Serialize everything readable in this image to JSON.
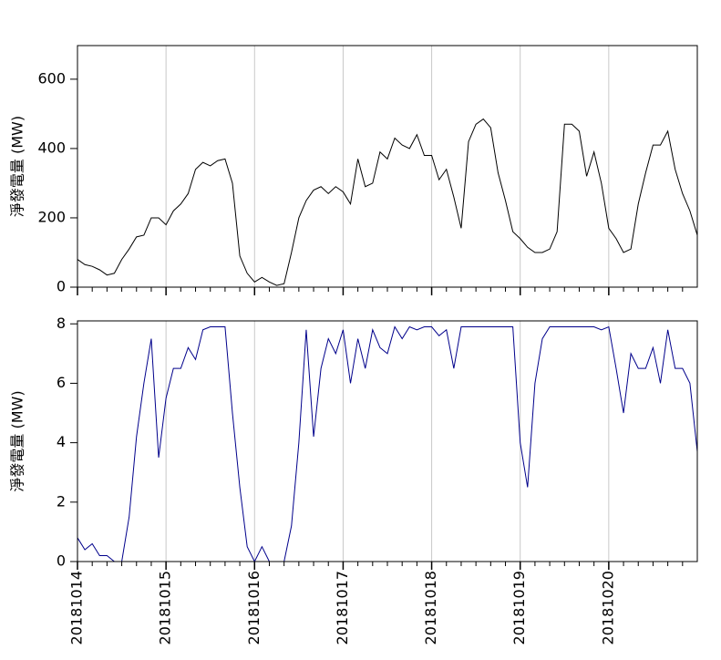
{
  "chart_data": [
    {
      "type": "line",
      "y_label": "淨發電量 (MW)",
      "x": [
        0,
        2,
        4,
        6,
        8,
        10,
        12,
        14,
        16,
        18,
        20,
        22,
        24,
        26,
        28,
        30,
        32,
        34,
        36,
        38,
        40,
        42,
        44,
        46,
        48,
        50,
        52,
        54,
        56,
        58,
        60,
        62,
        64,
        66,
        68,
        70,
        72,
        74,
        76,
        78,
        80,
        82,
        84,
        86,
        88,
        90,
        92,
        94,
        96,
        98,
        100,
        102,
        104,
        106,
        108,
        110,
        112,
        114,
        116,
        118,
        120,
        122,
        124,
        126,
        128,
        130,
        132,
        134,
        136,
        138,
        140,
        142,
        144,
        146,
        148,
        150,
        152,
        154,
        156,
        158,
        160,
        162,
        164,
        166,
        168
      ],
      "series": [
        {
          "color": "#000000",
          "values": [
            80,
            65,
            60,
            50,
            35,
            40,
            80,
            110,
            145,
            150,
            200,
            200,
            180,
            220,
            240,
            270,
            340,
            360,
            350,
            365,
            370,
            300,
            90,
            40,
            15,
            28,
            15,
            5,
            10,
            100,
            200,
            250,
            280,
            290,
            270,
            290,
            275,
            240,
            370,
            290,
            300,
            390,
            370,
            430,
            410,
            400,
            440,
            380,
            380,
            310,
            340,
            260,
            170,
            420,
            470,
            485,
            460,
            330,
            250,
            160,
            140,
            115,
            100,
            100,
            110,
            160,
            470,
            470,
            450,
            320,
            390,
            300,
            170,
            140,
            100,
            110,
            240,
            330,
            410,
            410,
            450,
            340,
            270,
            220,
            150
          ]
        }
      ],
      "xlim": [
        0,
        168
      ],
      "ylim": [
        0,
        697
      ],
      "xticks": [
        0,
        24,
        48,
        72,
        96,
        120,
        144
      ],
      "x_minor_ticks": [
        4,
        8,
        12,
        16,
        20,
        28,
        32,
        36,
        40,
        44,
        52,
        56,
        60,
        64,
        68,
        76,
        80,
        84,
        88,
        92,
        100,
        104,
        108,
        112,
        116,
        124,
        128,
        132,
        136,
        140,
        148,
        152,
        156,
        160,
        164
      ],
      "yticks": [
        0,
        200,
        400,
        600
      ],
      "grid": true
    },
    {
      "type": "line",
      "y_label": "淨發電量 (MW)",
      "x": [
        0,
        2,
        4,
        6,
        8,
        10,
        12,
        14,
        16,
        18,
        20,
        22,
        24,
        26,
        28,
        30,
        32,
        34,
        36,
        38,
        40,
        42,
        44,
        46,
        48,
        50,
        52,
        54,
        56,
        58,
        60,
        62,
        64,
        66,
        68,
        70,
        72,
        74,
        76,
        78,
        80,
        82,
        84,
        86,
        88,
        90,
        92,
        94,
        96,
        98,
        100,
        102,
        104,
        106,
        108,
        110,
        112,
        114,
        116,
        118,
        120,
        122,
        124,
        126,
        128,
        130,
        132,
        134,
        136,
        138,
        140,
        142,
        144,
        146,
        148,
        150,
        152,
        154,
        156,
        158,
        160,
        162,
        164,
        166,
        168
      ],
      "series": [
        {
          "color": "#00008b",
          "values": [
            0.8,
            0.4,
            0.6,
            0.2,
            0.2,
            0,
            0,
            1.5,
            4.2,
            6.0,
            7.5,
            3.5,
            5.5,
            6.5,
            6.5,
            7.2,
            6.8,
            7.8,
            7.9,
            7.9,
            7.9,
            5.0,
            2.5,
            0.5,
            0,
            0.5,
            0,
            0,
            0,
            1.2,
            4.0,
            7.8,
            4.2,
            6.5,
            7.5,
            7.0,
            7.8,
            6.0,
            7.5,
            6.5,
            7.8,
            7.2,
            7.0,
            7.9,
            7.5,
            7.9,
            7.8,
            7.9,
            7.9,
            7.6,
            7.8,
            6.5,
            7.9,
            7.9,
            7.9,
            7.9,
            7.9,
            7.9,
            7.9,
            7.9,
            4.0,
            2.5,
            6.0,
            7.5,
            7.9,
            7.9,
            7.9,
            7.9,
            7.9,
            7.9,
            7.9,
            7.8,
            7.9,
            6.5,
            5.0,
            7.0,
            6.5,
            6.5,
            7.2,
            6.0,
            7.8,
            6.5,
            6.5,
            6.0,
            3.7
          ]
        }
      ],
      "xlim": [
        0,
        168
      ],
      "ylim": [
        0,
        8.1
      ],
      "xticks": [
        {
          "value": 0,
          "label": "20181014"
        },
        {
          "value": 24,
          "label": "20181015"
        },
        {
          "value": 48,
          "label": "20181016"
        },
        {
          "value": 72,
          "label": "20181017"
        },
        {
          "value": 96,
          "label": "20181018"
        },
        {
          "value": 120,
          "label": "20181019"
        },
        {
          "value": 144,
          "label": "20181020"
        }
      ],
      "x_minor_ticks": [
        4,
        8,
        12,
        16,
        20,
        28,
        32,
        36,
        40,
        44,
        52,
        56,
        60,
        64,
        68,
        76,
        80,
        84,
        88,
        92,
        100,
        104,
        108,
        112,
        116,
        124,
        128,
        132,
        136,
        140,
        148,
        152,
        156,
        160,
        164
      ],
      "yticks": [
        0,
        2,
        4,
        6,
        8
      ],
      "grid": true
    }
  ]
}
